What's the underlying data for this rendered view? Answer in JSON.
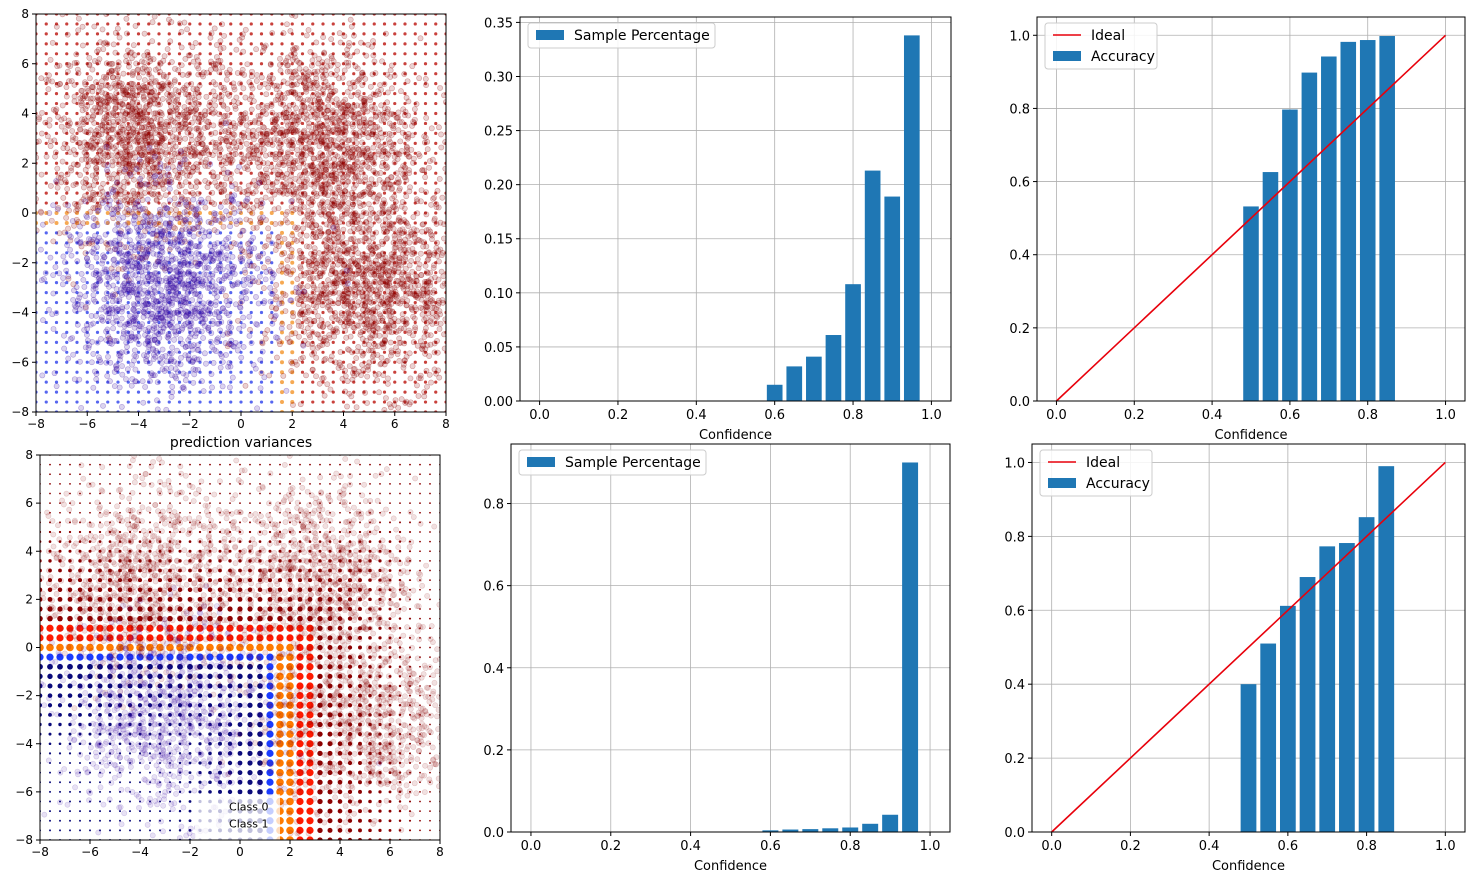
{
  "chart_data": [
    {
      "type": "scatter",
      "panel": "top-left",
      "title": "",
      "xlabel": "prediction variances",
      "ylabel": "",
      "xlim": [
        -8,
        8
      ],
      "ylim": [
        -8,
        8
      ],
      "xticks": [
        -8,
        -6,
        -4,
        -2,
        0,
        2,
        4,
        6,
        8
      ],
      "yticks": [
        -8,
        -6,
        -4,
        -2,
        0,
        2,
        4,
        6,
        8
      ],
      "clusters": [
        {
          "class": 1,
          "center": [
            -4,
            3
          ],
          "spread": 2.0,
          "color": "#8b0000"
        },
        {
          "class": 1,
          "center": [
            3,
            3
          ],
          "spread": 2.0,
          "color": "#8b0000"
        },
        {
          "class": 1,
          "center": [
            5,
            -3
          ],
          "spread": 2.0,
          "color": "#8b0000"
        },
        {
          "class": 0,
          "center": [
            -3,
            -3
          ],
          "spread": 2.0,
          "color": "#3a0ca3"
        }
      ],
      "grid_colors": {
        "class0": "#4455ee",
        "class1": "#c0201a",
        "boundary": "#f5a040"
      }
    },
    {
      "type": "bar",
      "panel": "top-middle",
      "xlabel": "Confidence",
      "ylabel": "",
      "xlim": [
        -0.05,
        1.05
      ],
      "ylim": [
        0,
        0.355
      ],
      "xticks": [
        0.0,
        0.2,
        0.4,
        0.6,
        0.8,
        1.0
      ],
      "yticks": [
        0.0,
        0.05,
        0.1,
        0.15,
        0.2,
        0.25,
        0.3,
        0.35
      ],
      "ytick_format": 2,
      "legend": [
        "Sample Percentage"
      ],
      "legend_position": "top-left",
      "bar_width": 0.05,
      "x": [
        0.5,
        0.55,
        0.6,
        0.65,
        0.7,
        0.75,
        0.8,
        0.85,
        0.9,
        0.95,
        1.0
      ],
      "series": [
        {
          "name": "Sample Percentage",
          "values": [
            0.0,
            0.0,
            0.015,
            0.032,
            0.041,
            0.061,
            0.108,
            0.213,
            0.189,
            0.338,
            0.0
          ]
        }
      ]
    },
    {
      "type": "bar",
      "panel": "top-right",
      "xlabel": "Confidence",
      "ylabel": "",
      "xlim": [
        -0.05,
        1.05
      ],
      "ylim": [
        0,
        1.05
      ],
      "xticks": [
        0.0,
        0.2,
        0.4,
        0.6,
        0.8,
        1.0
      ],
      "yticks": [
        0.0,
        0.2,
        0.4,
        0.6,
        0.8,
        1.0
      ],
      "ytick_format": 1,
      "legend": [
        "Ideal",
        "Accuracy"
      ],
      "legend_position": "top-left",
      "bar_width": 0.05,
      "ideal_line": [
        [
          0,
          0
        ],
        [
          1,
          1
        ]
      ],
      "x": [
        0.5,
        0.55,
        0.6,
        0.65,
        0.7,
        0.75,
        0.8,
        0.85,
        0.9,
        0.95,
        1.0
      ],
      "series": [
        {
          "name": "Accuracy",
          "values": [
            0.532,
            0.626,
            0.797,
            0.898,
            0.942,
            0.982,
            0.987,
            0.998,
            0,
            0,
            0
          ]
        }
      ]
    },
    {
      "type": "scatter",
      "panel": "bottom-left",
      "title": "",
      "xlabel": "",
      "ylabel": "",
      "xlim": [
        -8,
        8
      ],
      "ylim": [
        -8,
        8
      ],
      "xticks": [
        -8,
        -6,
        -4,
        -2,
        0,
        2,
        4,
        6,
        8
      ],
      "yticks": [
        -8,
        -6,
        -4,
        -2,
        0,
        2,
        4,
        6,
        8
      ],
      "legend": [
        "Class 0",
        "Class 1"
      ],
      "legend_position": "bottom-center",
      "clusters": [
        {
          "class": 1,
          "center": [
            -4,
            3
          ],
          "spread": 2.0,
          "color": "#8b0000"
        },
        {
          "class": 1,
          "center": [
            3,
            3
          ],
          "spread": 2.0,
          "color": "#8b0000"
        },
        {
          "class": 1,
          "center": [
            5,
            -3
          ],
          "spread": 2.0,
          "color": "#8b0000"
        },
        {
          "class": 0,
          "center": [
            -3,
            -3
          ],
          "spread": 2.0,
          "color": "#3a0ca3"
        }
      ],
      "grid_colors": {
        "class0": "#0a0a7a",
        "class1": "#8b0000",
        "boundary_red": "#ff1a00",
        "boundary_orange": "#ff7a00",
        "boundary_blue": "#1a3cff"
      }
    },
    {
      "type": "bar",
      "panel": "bottom-middle",
      "xlabel": "Confidence",
      "ylabel": "",
      "xlim": [
        -0.05,
        1.05
      ],
      "ylim": [
        0,
        0.945
      ],
      "xticks": [
        0.0,
        0.2,
        0.4,
        0.6,
        0.8,
        1.0
      ],
      "yticks": [
        0.0,
        0.2,
        0.4,
        0.6,
        0.8
      ],
      "ytick_format": 1,
      "legend": [
        "Sample Percentage"
      ],
      "legend_position": "top-left",
      "bar_width": 0.05,
      "x": [
        0.5,
        0.55,
        0.6,
        0.65,
        0.7,
        0.75,
        0.8,
        0.85,
        0.9,
        0.95,
        1.0
      ],
      "series": [
        {
          "name": "Sample Percentage",
          "values": [
            0.0,
            0.0,
            0.004,
            0.006,
            0.007,
            0.009,
            0.011,
            0.02,
            0.042,
            0.9,
            0.0
          ]
        }
      ]
    },
    {
      "type": "bar",
      "panel": "bottom-right",
      "xlabel": "Confidence",
      "ylabel": "",
      "xlim": [
        -0.05,
        1.05
      ],
      "ylim": [
        0,
        1.05
      ],
      "xticks": [
        0.0,
        0.2,
        0.4,
        0.6,
        0.8,
        1.0
      ],
      "yticks": [
        0.0,
        0.2,
        0.4,
        0.6,
        0.8,
        1.0
      ],
      "ytick_format": 1,
      "legend": [
        "Ideal",
        "Accuracy"
      ],
      "legend_position": "top-left",
      "bar_width": 0.05,
      "ideal_line": [
        [
          0,
          0
        ],
        [
          1,
          1
        ]
      ],
      "x": [
        0.5,
        0.55,
        0.6,
        0.65,
        0.7,
        0.75,
        0.8,
        0.85,
        0.9,
        0.95,
        1.0
      ],
      "series": [
        {
          "name": "Accuracy",
          "values": [
            0.4,
            0.51,
            0.612,
            0.69,
            0.773,
            0.782,
            0.852,
            0.99,
            0,
            0,
            0
          ]
        }
      ]
    }
  ]
}
